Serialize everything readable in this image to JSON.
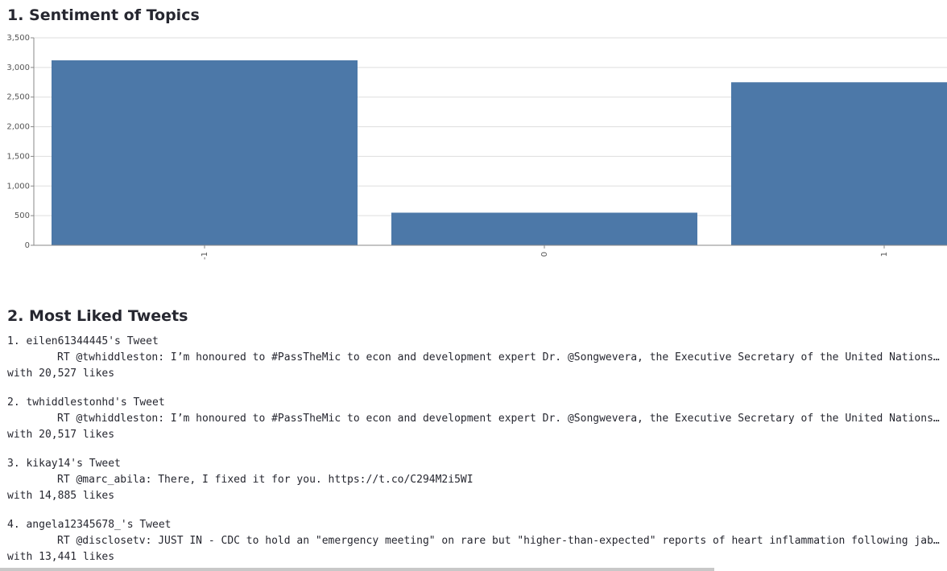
{
  "chart_data": {
    "type": "bar",
    "title": "1. Sentiment of Topics",
    "categories": [
      "-1",
      "0",
      "1"
    ],
    "values": [
      3120,
      550,
      2750
    ],
    "color": "#4c78a8",
    "ylim": [
      0,
      3500
    ],
    "yticks": [
      0,
      500,
      {
        "value": 1000,
        "label": "1,000"
      },
      {
        "value": 1500,
        "label": "1,500"
      },
      {
        "value": 2000,
        "label": "2,000"
      },
      {
        "value": 2500,
        "label": "2,500"
      },
      {
        "value": 3000,
        "label": "3,000"
      },
      {
        "value": 3500,
        "label": "3,500"
      }
    ],
    "grid": true
  },
  "tweets_section": {
    "title": "2. Most Liked Tweets",
    "tweets": [
      {
        "title": "1. eilen61344445's Tweet",
        "text": "RT @twhiddleston: I’m honoured to #PassTheMic to econ and development expert Dr. @Songwevera, the Executive Secretary of the United Nations…",
        "likes": "with 20,527 likes"
      },
      {
        "title": "2. twhiddlestonhd's Tweet",
        "text": "RT @twhiddleston: I’m honoured to #PassTheMic to econ and development expert Dr. @Songwevera, the Executive Secretary of the United Nations…",
        "likes": "with 20,517 likes"
      },
      {
        "title": "3. kikay14's Tweet",
        "text": "RT @marc_abila: There, I fixed it for you. https://t.co/C294M2i5WI",
        "likes": "with 14,885 likes"
      },
      {
        "title": "4. angela12345678_'s Tweet",
        "text": "RT @disclosetv: JUST IN - CDC to hold an \"emergency meeting\" on rare but \"higher-than-expected\" reports of heart inflammation following jab…",
        "likes": "with 13,441 likes"
      }
    ]
  }
}
